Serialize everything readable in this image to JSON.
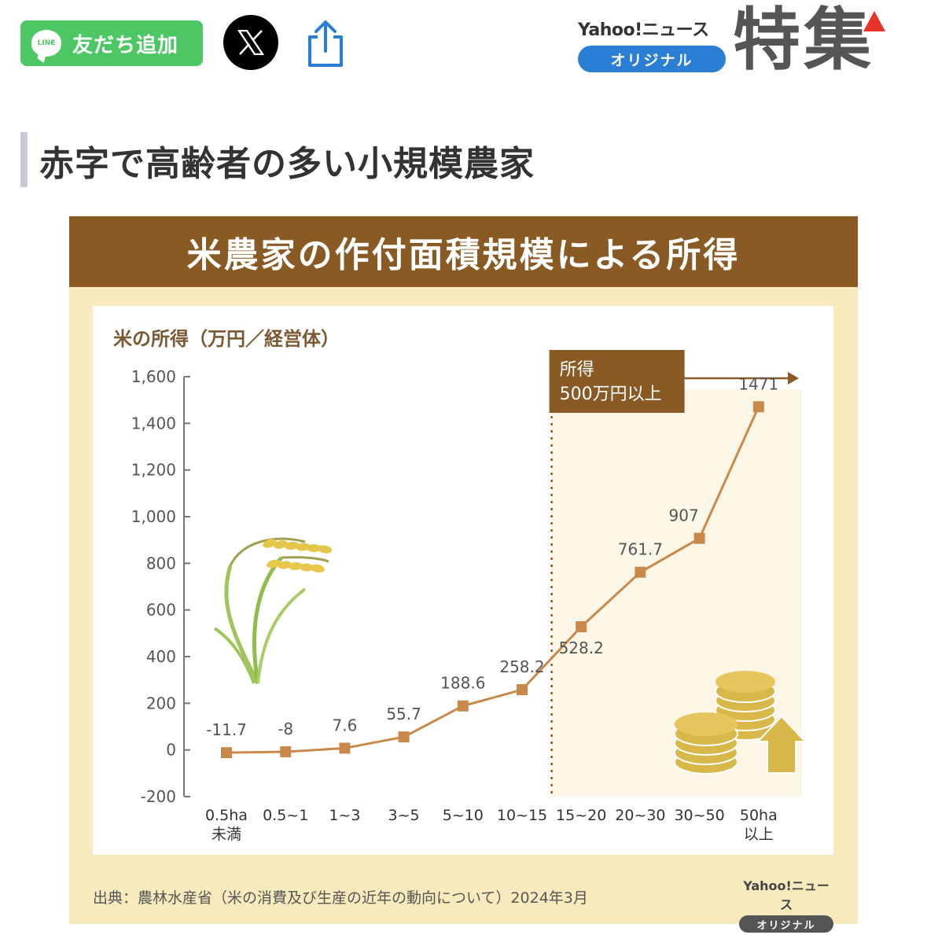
{
  "topbar": {
    "line_button_label": "友だち追加",
    "line_icon_text": "LINE",
    "yahoo_news": "Yahoo!ニュース",
    "yahoo_original": "オリジナル",
    "tokushu": "特集"
  },
  "section": {
    "title": "赤字で高齢者の多い小規模農家"
  },
  "infographic": {
    "header": "米農家の作付面積規模による所得",
    "source": "出典：農林水産省（米の消費及び生産の近年の動向について）2024年3月",
    "brand_text": "Yahoo!ニュース",
    "brand_pill": "オリジナル",
    "colors": {
      "header_bg": "#8a5a24",
      "card_bg": "#f7ebbd",
      "line": "#c8894a",
      "highlight_bg": "#fcf6e6",
      "accent_blue": "#2a7fd4",
      "line_green": "#4cc764"
    }
  },
  "chart_data": {
    "type": "line",
    "ylabel": "米の所得（万円／経営体）",
    "ylim": [
      -200,
      1600
    ],
    "yticks": [
      "-200",
      "0",
      "200",
      "400",
      "600",
      "800",
      "1,000",
      "1,200",
      "1,400",
      "1,600"
    ],
    "categories": [
      [
        "0.5ha",
        "未満"
      ],
      [
        "0.5~1"
      ],
      [
        "1~3"
      ],
      [
        "3~5"
      ],
      [
        "5~10"
      ],
      [
        "10~15"
      ],
      [
        "15~20"
      ],
      [
        "20~30"
      ],
      [
        "30~50"
      ],
      [
        "50ha",
        "以上"
      ]
    ],
    "values": [
      -11.7,
      -8,
      7.6,
      55.7,
      188.6,
      258.2,
      528.2,
      761.7,
      907,
      1471
    ],
    "value_labels": [
      "-11.7",
      "-8",
      "7.6",
      "55.7",
      "188.6",
      "258.2",
      "528.2",
      "761.7",
      "907",
      "1471"
    ],
    "highlight": {
      "from_category_index": 6,
      "label_line1": "所得",
      "label_line2": "500万円以上"
    }
  }
}
